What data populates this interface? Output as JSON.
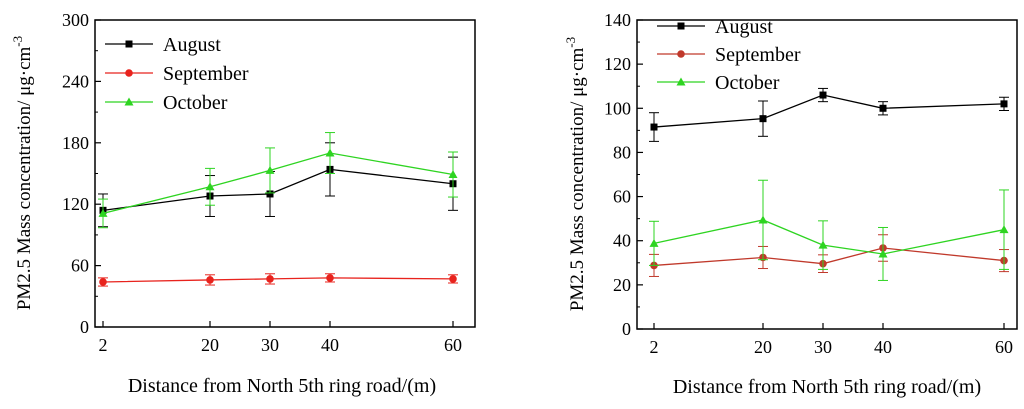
{
  "chart_data": [
    {
      "type": "line",
      "xlabel": "Distance from North 5th ring road/(m)",
      "ylabel": "PM2.5 Mass concentration/ μg·cm",
      "ylabel_sup": "-3",
      "x": [
        2,
        20,
        30,
        40,
        60
      ],
      "x_tick_labels": [
        "2",
        "20",
        "30",
        "40",
        "60"
      ],
      "ylim": [
        0,
        300
      ],
      "y_ticks": [
        0,
        60,
        120,
        180,
        240,
        300
      ],
      "legend": "top-left",
      "series": [
        {
          "name": "August",
          "color": "#000000",
          "marker": "square",
          "values": [
            114,
            128,
            130,
            154,
            140
          ],
          "errors": [
            16,
            20,
            22,
            26,
            26
          ]
        },
        {
          "name": "September",
          "color": "#e8231d",
          "marker": "circle",
          "values": [
            44,
            46,
            47,
            48,
            47
          ],
          "errors": [
            4,
            5,
            5,
            4,
            4
          ]
        },
        {
          "name": "October",
          "color": "#2ed421",
          "marker": "triangle",
          "values": [
            111,
            137,
            153,
            170,
            149
          ],
          "errors": [
            14,
            18,
            22,
            20,
            22
          ]
        }
      ]
    },
    {
      "type": "line",
      "xlabel": "Distance from North 5th ring road/(m)",
      "ylabel": "PM2.5 Mass concentration/ μg·cm",
      "ylabel_sup": "-3",
      "x": [
        2,
        20,
        30,
        40,
        60
      ],
      "x_tick_labels": [
        "2",
        "20",
        "30",
        "40",
        "60"
      ],
      "ylim": [
        0,
        140
      ],
      "y_ticks": [
        0,
        20,
        40,
        60,
        80,
        100,
        120,
        140
      ],
      "legend": "top-left",
      "series": [
        {
          "name": "August",
          "color": "#000000",
          "marker": "square",
          "values": [
            91.5,
            95.3,
            106,
            100,
            102
          ],
          "errors": [
            6.5,
            8,
            3,
            3,
            3
          ]
        },
        {
          "name": "September",
          "color": "#c0392b",
          "marker": "circle",
          "values": [
            28.8,
            32.4,
            29.6,
            36.7,
            31
          ],
          "errors": [
            5,
            5,
            4,
            6,
            5
          ]
        },
        {
          "name": "October",
          "color": "#2ed421",
          "marker": "triangle",
          "values": [
            38.8,
            49.4,
            38,
            34,
            45
          ],
          "errors": [
            10,
            18,
            11,
            12,
            18
          ]
        }
      ]
    }
  ]
}
